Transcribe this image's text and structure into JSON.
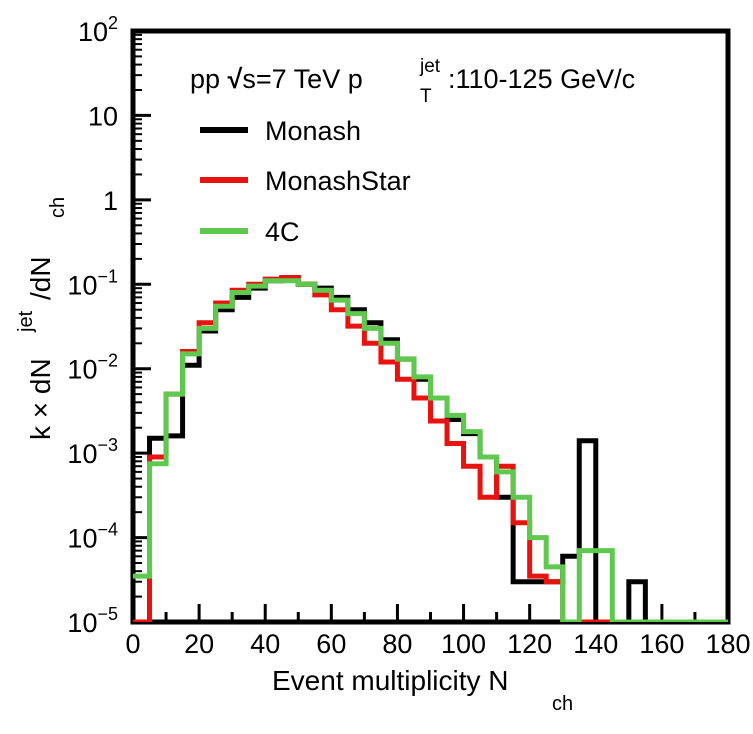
{
  "chart_data": {
    "type": "step-histogram",
    "annotation": {
      "prefix": "pp ",
      "sqrt_symbol": "√",
      "sqrt_arg": "s",
      "energy": "=7 TeV ",
      "pt_base": "p",
      "pt_sup": "jet",
      "pt_sub": "T",
      "pt_range": ":110-125 GeV/c"
    },
    "xlabel": {
      "main": "Event multiplicity N",
      "sub": "ch"
    },
    "ylabel": {
      "part1": "k × dN",
      "sup": "jet",
      "part2": "/dN",
      "sub": "ch"
    },
    "xlim": [
      0,
      180
    ],
    "ylim": [
      1e-05,
      100
    ],
    "yscale": "log",
    "x_ticks": [
      "0",
      "20",
      "40",
      "60",
      "80",
      "100",
      "120",
      "140",
      "160",
      "180"
    ],
    "y_ticks": [
      {
        "base": "10",
        "exp": "2",
        "value": 100
      },
      {
        "base": "10",
        "exp": "",
        "value": 10
      },
      {
        "base": "1",
        "exp": "",
        "value": 1
      },
      {
        "base": "10",
        "exp": "−1",
        "value": 0.1
      },
      {
        "base": "10",
        "exp": "−2",
        "value": 0.01
      },
      {
        "base": "10",
        "exp": "−3",
        "value": 0.001
      },
      {
        "base": "10",
        "exp": "−4",
        "value": 0.0001
      },
      {
        "base": "10",
        "exp": "−5",
        "value": 1e-05
      }
    ],
    "legend_position": "top-left",
    "bin_width": 5,
    "bin_start": 0,
    "series": [
      {
        "name": "Monash",
        "color": "#000000",
        "values": [
          1e-05,
          0.0015,
          0.0016,
          0.011,
          0.028,
          0.05,
          0.07,
          0.09,
          0.11,
          0.12,
          0.1,
          0.09,
          0.07,
          0.05,
          0.035,
          0.022,
          0.013,
          0.0075,
          0.0045,
          0.0025,
          0.0017,
          0.0009,
          0.0003,
          3e-05,
          3e-05,
          3e-05,
          6e-05,
          0.0014,
          1e-05,
          1e-05,
          3e-05,
          1e-05,
          1e-05,
          1e-05,
          1e-05,
          1e-05
        ]
      },
      {
        "name": "MonashStar",
        "color": "#e8130e",
        "values": [
          1e-05,
          0.0009,
          0.005,
          0.016,
          0.035,
          0.06,
          0.085,
          0.1,
          0.115,
          0.12,
          0.1,
          0.075,
          0.05,
          0.032,
          0.02,
          0.012,
          0.0075,
          0.0045,
          0.0024,
          0.0013,
          0.0007,
          0.0003,
          0.0007,
          0.00015,
          3.5e-05,
          3e-05,
          1e-05,
          1e-05,
          1e-05,
          1e-05,
          1e-05,
          1e-05,
          1e-05,
          1e-05,
          1e-05,
          1e-05
        ]
      },
      {
        "name": "4C",
        "color": "#5ec94e",
        "values": [
          3.5e-05,
          0.00075,
          0.005,
          0.015,
          0.03,
          0.055,
          0.08,
          0.095,
          0.11,
          0.11,
          0.1,
          0.085,
          0.065,
          0.045,
          0.03,
          0.02,
          0.013,
          0.008,
          0.0045,
          0.0028,
          0.0018,
          0.0009,
          0.0006,
          0.0003,
          0.0001,
          4.5e-05,
          1e-05,
          7e-05,
          7e-05,
          1e-05,
          1e-05,
          1e-05,
          1e-05,
          1e-05,
          1e-05,
          1e-05
        ]
      }
    ]
  }
}
